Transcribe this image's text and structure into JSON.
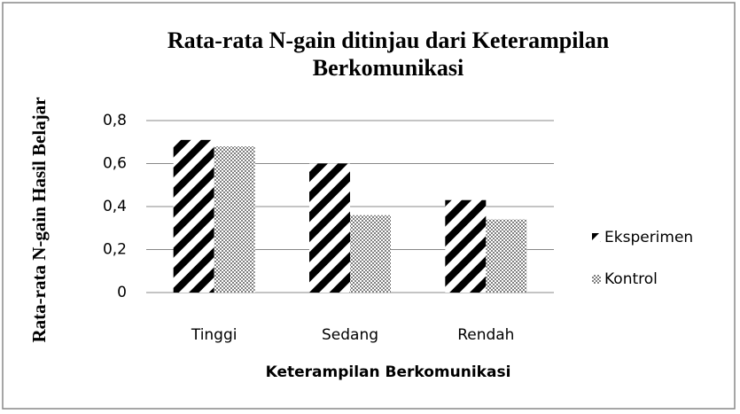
{
  "chart_data": {
    "type": "bar",
    "title": "Rata-rata N-gain ditinjau dari Keterampilan Berkomunikasi",
    "x_label": "Keterampilan Berkomunikasi",
    "y_label": "Rata-rata N-gain Hasil Belajar",
    "categories": [
      "Tinggi",
      "Sedang",
      "Rendah"
    ],
    "series": [
      {
        "name": "Eksperimen",
        "color": "#000000",
        "values": [
          0.71,
          0.6,
          0.43
        ]
      },
      {
        "name": "Kontrol",
        "color": "#808080",
        "values": [
          0.68,
          0.36,
          0.34
        ]
      }
    ],
    "ylim": [
      0,
      0.8
    ],
    "yticks": [
      0,
      {
        "value": 0.2,
        "label": "0,2"
      },
      {
        "value": 0.4,
        "label": "0,4"
      },
      {
        "value": 0.6,
        "label": "0,6"
      },
      {
        "value": 0.8,
        "label": "0,8"
      }
    ],
    "grid": true,
    "legend": "right"
  }
}
